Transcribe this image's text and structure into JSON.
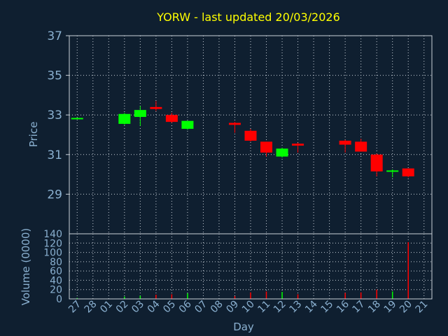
{
  "chart_data": [
    {
      "type": "candlestick",
      "title": "YORW - last updated 20/03/2026",
      "ylabel": "Price",
      "xlabel": "Day",
      "ylim": [
        27,
        37
      ],
      "yticks": [
        29,
        31,
        33,
        35,
        37
      ],
      "grid": true,
      "categories": [
        "27",
        "28",
        "01",
        "02",
        "03",
        "04",
        "05",
        "06",
        "07",
        "08",
        "09",
        "10",
        "11",
        "12",
        "13",
        "14",
        "15",
        "16",
        "17",
        "18",
        "19",
        "20",
        "21"
      ],
      "candles": [
        {
          "day": "27",
          "open": 32.83,
          "high": 32.87,
          "low": 32.79,
          "close": 32.85
        },
        {
          "day": "02",
          "open": 32.55,
          "high": 33.1,
          "low": 32.5,
          "close": 33.05
        },
        {
          "day": "03",
          "open": 32.9,
          "high": 33.45,
          "low": 32.45,
          "close": 33.25
        },
        {
          "day": "04",
          "open": 33.4,
          "high": 33.7,
          "low": 33.2,
          "close": 33.3
        },
        {
          "day": "05",
          "open": 33.0,
          "high": 33.1,
          "low": 32.6,
          "close": 32.65
        },
        {
          "day": "06",
          "open": 32.3,
          "high": 32.7,
          "low": 32.25,
          "close": 32.7
        },
        {
          "day": "09",
          "open": 32.6,
          "high": 32.65,
          "low": 32.1,
          "close": 32.5
        },
        {
          "day": "10",
          "open": 32.2,
          "high": 32.3,
          "low": 31.65,
          "close": 31.7
        },
        {
          "day": "11",
          "open": 31.65,
          "high": 31.65,
          "low": 30.9,
          "close": 31.1
        },
        {
          "day": "12",
          "open": 30.9,
          "high": 31.35,
          "low": 30.85,
          "close": 31.3
        },
        {
          "day": "13",
          "open": 31.55,
          "high": 31.6,
          "low": 31.1,
          "close": 31.45
        },
        {
          "day": "16",
          "open": 31.7,
          "high": 31.75,
          "low": 31.1,
          "close": 31.5
        },
        {
          "day": "17",
          "open": 31.65,
          "high": 31.8,
          "low": 31.15,
          "close": 31.15
        },
        {
          "day": "18",
          "open": 31.0,
          "high": 31.05,
          "low": 29.9,
          "close": 30.15
        },
        {
          "day": "19",
          "open": 30.15,
          "high": 30.25,
          "low": 29.85,
          "close": 30.2
        },
        {
          "day": "20",
          "open": 30.3,
          "high": 30.3,
          "low": 29.85,
          "close": 29.9
        }
      ],
      "colors": {
        "up": "#00ff00",
        "down": "#ff0000",
        "title": "#ffff00",
        "axis_text": "#8ab0d0",
        "background": "#0f1f30",
        "plot_bg": "#0f1f30",
        "grid": "#c8d0d8"
      }
    },
    {
      "type": "bar",
      "ylabel": "Volume (0000)",
      "ylim": [
        0,
        140
      ],
      "yticks": [
        0,
        20,
        40,
        60,
        80,
        100,
        120,
        140
      ],
      "categories": [
        "27",
        "28",
        "01",
        "02",
        "03",
        "04",
        "05",
        "06",
        "07",
        "08",
        "09",
        "10",
        "11",
        "12",
        "13",
        "14",
        "15",
        "16",
        "17",
        "18",
        "19",
        "20",
        "21"
      ],
      "volumes": [
        {
          "day": "27",
          "value": 2,
          "dir": "up"
        },
        {
          "day": "02",
          "value": 5,
          "dir": "up"
        },
        {
          "day": "03",
          "value": 7,
          "dir": "up"
        },
        {
          "day": "04",
          "value": 9,
          "dir": "down"
        },
        {
          "day": "05",
          "value": 10,
          "dir": "down"
        },
        {
          "day": "06",
          "value": 12,
          "dir": "up"
        },
        {
          "day": "09",
          "value": 6,
          "dir": "down"
        },
        {
          "day": "10",
          "value": 14,
          "dir": "down"
        },
        {
          "day": "11",
          "value": 16,
          "dir": "down"
        },
        {
          "day": "12",
          "value": 15,
          "dir": "up"
        },
        {
          "day": "13",
          "value": 10,
          "dir": "down"
        },
        {
          "day": "16",
          "value": 13,
          "dir": "down"
        },
        {
          "day": "17",
          "value": 14,
          "dir": "down"
        },
        {
          "day": "18",
          "value": 20,
          "dir": "down"
        },
        {
          "day": "19",
          "value": 16,
          "dir": "up"
        },
        {
          "day": "20",
          "value": 122,
          "dir": "down"
        }
      ]
    }
  ]
}
